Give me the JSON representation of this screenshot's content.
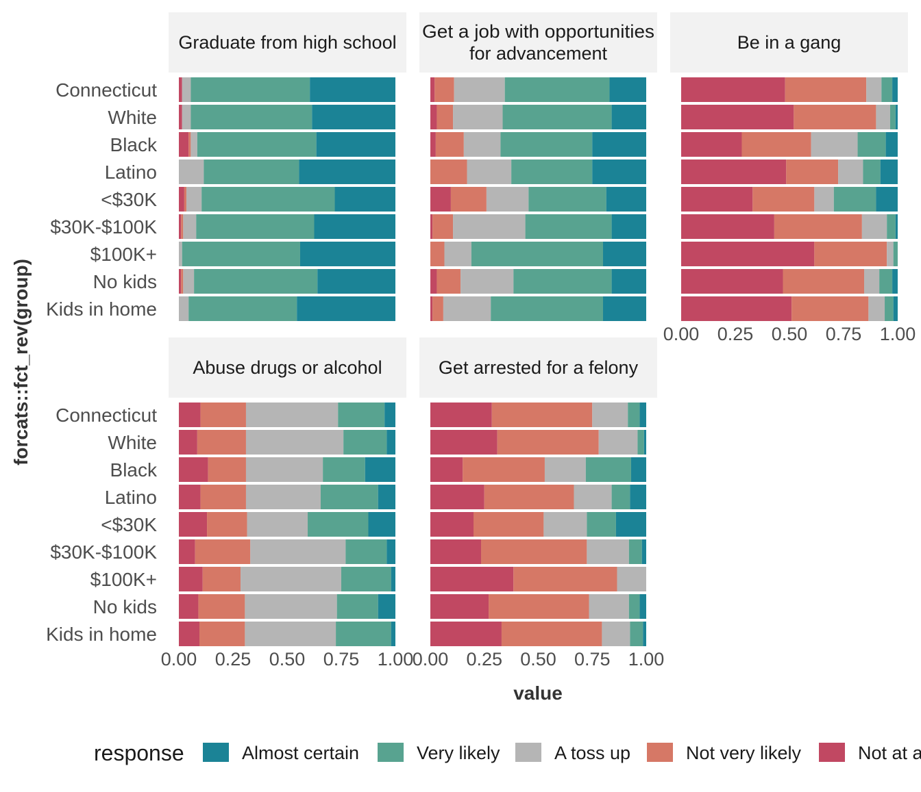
{
  "chart_data": {
    "type": "bar",
    "orientation": "horizontal",
    "stacked": "proportional",
    "facets": "wrap",
    "ylabel": "forcats::fct_rev(group)",
    "xlabel": "value",
    "xlim": [
      0,
      1
    ],
    "xticks": [
      "0.00",
      "0.25",
      "0.50",
      "0.75",
      "1.00"
    ],
    "categories": [
      "Connecticut",
      "White",
      "Black",
      "Latino",
      "<$30K",
      "$30K-$100K",
      "$100K+",
      "No kids",
      "Kids in home"
    ],
    "legend": {
      "title": "response",
      "position": "bottom",
      "entries": [
        "Almost certain",
        "Very likely",
        "A toss up",
        "Not very likely",
        "Not at all likely"
      ],
      "visible_entries": [
        "Almost certain",
        "Very likely",
        "A toss up",
        "Not very likely",
        "Not at a"
      ]
    },
    "colors": {
      "Almost certain": "#1b8396",
      "Very likely": "#58a390",
      "A toss up": "#b5b5b5",
      "Not very likely": "#d67866",
      "Not at all likely": "#c14862"
    },
    "stack_order": [
      "Not at all likely",
      "Not very likely",
      "A toss up",
      "Very likely",
      "Almost certain"
    ],
    "panels": [
      {
        "title": [
          "Graduate from high school"
        ],
        "values": {
          "Connecticut": [
            0.015,
            0.0,
            0.04,
            0.55,
            0.395
          ],
          "White": [
            0.015,
            0.0,
            0.04,
            0.56,
            0.385
          ],
          "Black": [
            0.045,
            0.01,
            0.03,
            0.55,
            0.365
          ],
          "Latino": [
            0.0,
            0.0,
            0.115,
            0.44,
            0.445
          ],
          "<$30K": [
            0.025,
            0.01,
            0.07,
            0.615,
            0.28
          ],
          "$30K-$100K": [
            0.01,
            0.01,
            0.06,
            0.545,
            0.375
          ],
          "$100K+": [
            0.0,
            0.0,
            0.015,
            0.545,
            0.44
          ],
          "No kids": [
            0.01,
            0.01,
            0.05,
            0.57,
            0.36
          ],
          "Kids in home": [
            0.0,
            0.0,
            0.045,
            0.5,
            0.455
          ]
        }
      },
      {
        "title": [
          "Get a job with opportunities",
          "for advancement"
        ],
        "values": {
          "Connecticut": [
            0.02,
            0.09,
            0.235,
            0.485,
            0.17
          ],
          "White": [
            0.03,
            0.075,
            0.23,
            0.505,
            0.16
          ],
          "Black": [
            0.025,
            0.13,
            0.17,
            0.425,
            0.25
          ],
          "Latino": [
            0.0,
            0.17,
            0.205,
            0.375,
            0.25
          ],
          "<$30K": [
            0.095,
            0.165,
            0.195,
            0.36,
            0.185
          ],
          "$30K-$100K": [
            0.01,
            0.095,
            0.335,
            0.4,
            0.16
          ],
          "$100K+": [
            0.0,
            0.065,
            0.125,
            0.61,
            0.2
          ],
          "No kids": [
            0.03,
            0.11,
            0.245,
            0.455,
            0.16
          ],
          "Kids in home": [
            0.01,
            0.05,
            0.22,
            0.52,
            0.2
          ]
        }
      },
      {
        "title": [
          "Be in a gang"
        ],
        "values": {
          "Connecticut": [
            0.48,
            0.375,
            0.07,
            0.05,
            0.025
          ],
          "White": [
            0.52,
            0.38,
            0.065,
            0.025,
            0.01
          ],
          "Black": [
            0.28,
            0.32,
            0.215,
            0.13,
            0.055
          ],
          "Latino": [
            0.485,
            0.24,
            0.115,
            0.08,
            0.08
          ],
          "<$30K": [
            0.33,
            0.285,
            0.09,
            0.195,
            0.1
          ],
          "$30K-$100K": [
            0.43,
            0.405,
            0.115,
            0.04,
            0.01
          ],
          "$100K+": [
            0.615,
            0.335,
            0.03,
            0.02,
            0.0
          ],
          "No kids": [
            0.47,
            0.375,
            0.07,
            0.06,
            0.025
          ],
          "Kids in home": [
            0.51,
            0.355,
            0.075,
            0.04,
            0.02
          ]
        }
      },
      {
        "title": [
          "Abuse drugs or alcohol"
        ],
        "values": {
          "Connecticut": [
            0.1,
            0.21,
            0.425,
            0.215,
            0.05
          ],
          "White": [
            0.085,
            0.225,
            0.45,
            0.2,
            0.04
          ],
          "Black": [
            0.135,
            0.175,
            0.355,
            0.195,
            0.14
          ],
          "Latino": [
            0.1,
            0.21,
            0.345,
            0.265,
            0.08
          ],
          "<$30K": [
            0.13,
            0.185,
            0.28,
            0.28,
            0.125
          ],
          "$30K-$100K": [
            0.075,
            0.255,
            0.44,
            0.19,
            0.04
          ],
          "$100K+": [
            0.11,
            0.175,
            0.465,
            0.23,
            0.02
          ],
          "No kids": [
            0.09,
            0.215,
            0.425,
            0.19,
            0.08
          ],
          "Kids in home": [
            0.095,
            0.21,
            0.42,
            0.255,
            0.02
          ]
        }
      },
      {
        "title": [
          "Get arrested for a felony"
        ],
        "values": {
          "Connecticut": [
            0.285,
            0.465,
            0.165,
            0.055,
            0.03
          ],
          "White": [
            0.31,
            0.47,
            0.18,
            0.03,
            0.01
          ],
          "Black": [
            0.15,
            0.38,
            0.19,
            0.21,
            0.07
          ],
          "Latino": [
            0.25,
            0.415,
            0.175,
            0.085,
            0.075
          ],
          "<$30K": [
            0.2,
            0.325,
            0.2,
            0.135,
            0.14
          ],
          "$30K-$100K": [
            0.235,
            0.49,
            0.195,
            0.06,
            0.02
          ],
          "$100K+": [
            0.385,
            0.48,
            0.135,
            0.0,
            0.0
          ],
          "No kids": [
            0.27,
            0.465,
            0.185,
            0.05,
            0.03
          ],
          "Kids in home": [
            0.33,
            0.465,
            0.13,
            0.06,
            0.015
          ]
        }
      }
    ]
  }
}
